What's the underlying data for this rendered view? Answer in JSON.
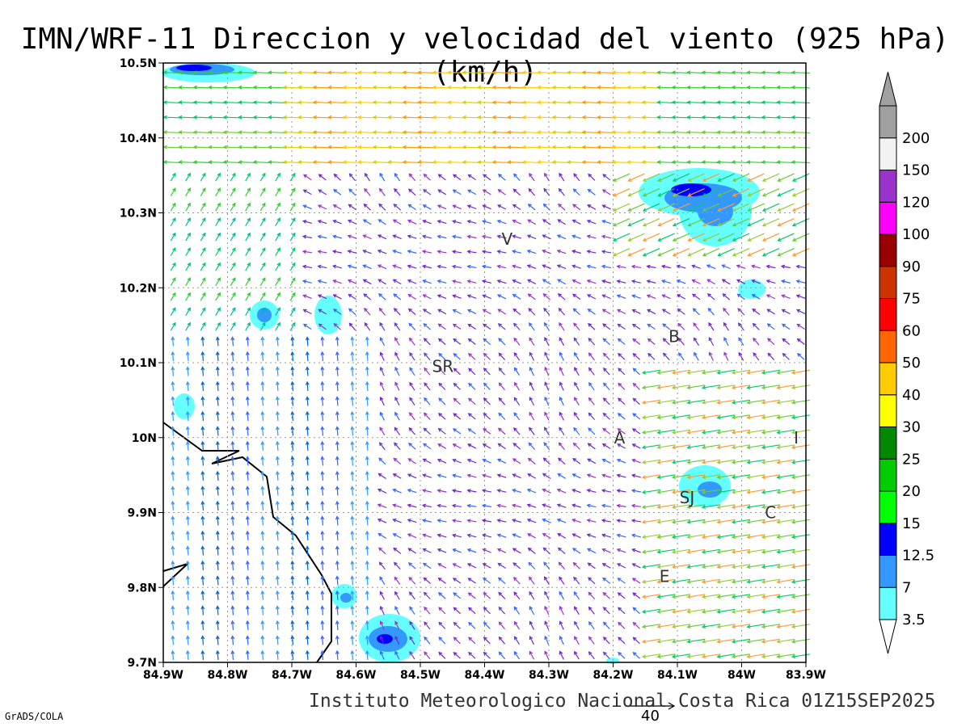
{
  "title": "IMN/WRF-11 Direccion y velocidad del viento (925 hPa)(km/h)",
  "footer": "Instituto Meteorologico Nacional Costa Rica 01Z15SEP2025",
  "software": "GrADS/COLA",
  "reference_vector": "40",
  "x_ticks": [
    "84.9W",
    "84.8W",
    "84.7W",
    "84.6W",
    "84.5W",
    "84.4W",
    "84.3W",
    "84.2W",
    "84.1W",
    "84W",
    "83.9W"
  ],
  "y_ticks": [
    "10.5N",
    "10.4N",
    "10.3N",
    "10.2N",
    "10.1N",
    "10N",
    "9.9N",
    "9.8N",
    "9.7N"
  ],
  "legend": {
    "labels": [
      "3.5",
      "7",
      "12.5",
      "15",
      "20",
      "25",
      "30",
      "40",
      "50",
      "60",
      "75",
      "90",
      "100",
      "120",
      "150",
      "200"
    ],
    "colors": [
      "#66ffff",
      "#3399ff",
      "#0000ff",
      "#00ff00",
      "#00cc00",
      "#008800",
      "#ffff00",
      "#ffcc00",
      "#ff6600",
      "#ff0000",
      "#cc3300",
      "#990000",
      "#ff00ff",
      "#9933cc",
      "#f2f2f2",
      "#a0a0a0"
    ]
  },
  "places": [
    {
      "label": "V",
      "lon": -84.365,
      "lat": 10.265
    },
    {
      "label": "B",
      "lon": -84.105,
      "lat": 10.135
    },
    {
      "label": "SR",
      "lon": -84.465,
      "lat": 10.095
    },
    {
      "label": "A",
      "lon": -84.19,
      "lat": 10.0
    },
    {
      "label": "I",
      "lon": -83.915,
      "lat": 10.0
    },
    {
      "label": "SJ",
      "lon": -84.085,
      "lat": 9.92
    },
    {
      "label": "C",
      "lon": -83.955,
      "lat": 9.9
    },
    {
      "label": "E",
      "lon": -84.12,
      "lat": 9.815
    }
  ]
}
